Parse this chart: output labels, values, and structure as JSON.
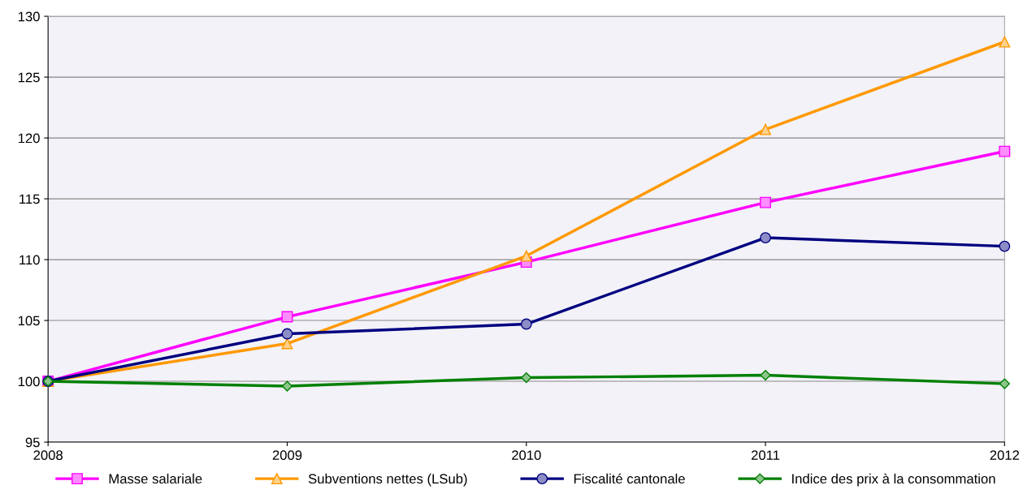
{
  "chart_data": {
    "type": "line",
    "x": [
      2008,
      2009,
      2010,
      2011,
      2012
    ],
    "xlim": [
      2008,
      2012
    ],
    "xticks": [
      2008,
      2009,
      2010,
      2011,
      2012
    ],
    "ylim": [
      95,
      130
    ],
    "yticks": [
      95,
      100,
      105,
      110,
      115,
      120,
      125,
      130
    ],
    "grid": "y",
    "legend": "bottom",
    "series": [
      {
        "name": "Masse salariale",
        "color": "#ff00ff",
        "marker": "square",
        "values": [
          100,
          105.3,
          109.8,
          114.7,
          118.9
        ]
      },
      {
        "name": "Subventions nettes (LSub)",
        "color": "#ff9900",
        "marker": "triangle",
        "values": [
          100,
          103.1,
          110.3,
          120.7,
          127.9
        ]
      },
      {
        "name": "Fiscalité cantonale",
        "color": "#000080",
        "marker": "circle",
        "values": [
          100,
          103.9,
          104.7,
          111.8,
          111.1
        ]
      },
      {
        "name": "Indice des prix à la consommation",
        "color": "#008000",
        "marker": "diamond",
        "values": [
          100,
          99.6,
          100.3,
          100.5,
          99.8
        ]
      }
    ]
  }
}
